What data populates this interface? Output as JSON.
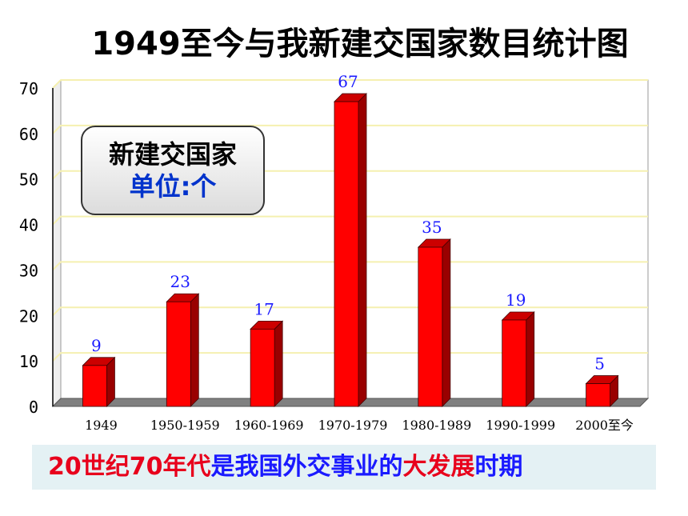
{
  "title": "1949至今与我新建交国家数目统计图",
  "legend": {
    "title": "新建交国家",
    "unit": "单位:个"
  },
  "banner": {
    "segments": [
      {
        "text": "20世纪70年代",
        "color": "red"
      },
      {
        "text": "是我国外交事业的",
        "color": "blue"
      },
      {
        "text": "大发展",
        "color": "red"
      },
      {
        "text": "时期",
        "color": "blue"
      }
    ]
  },
  "colors": {
    "bar": "#ff0000",
    "bar_side": "#990000",
    "bar_top": "#cc0000",
    "grid": "#f5f0b0",
    "value_label": "#1a1aff"
  },
  "chart_data": {
    "type": "bar",
    "title": "1949至今与我新建交国家数目统计图",
    "categories": [
      "1949",
      "1950-1959",
      "1960-1969",
      "1970-1979",
      "1980-1989",
      "1990-1999",
      "2000至今"
    ],
    "values": [
      9,
      23,
      17,
      67,
      35,
      19,
      5
    ],
    "ylim": [
      0,
      70
    ],
    "yticks": [
      0,
      10,
      20,
      30,
      40,
      50,
      60,
      70
    ],
    "xlabel": "",
    "ylabel": "",
    "grid": true,
    "style": "3d"
  }
}
